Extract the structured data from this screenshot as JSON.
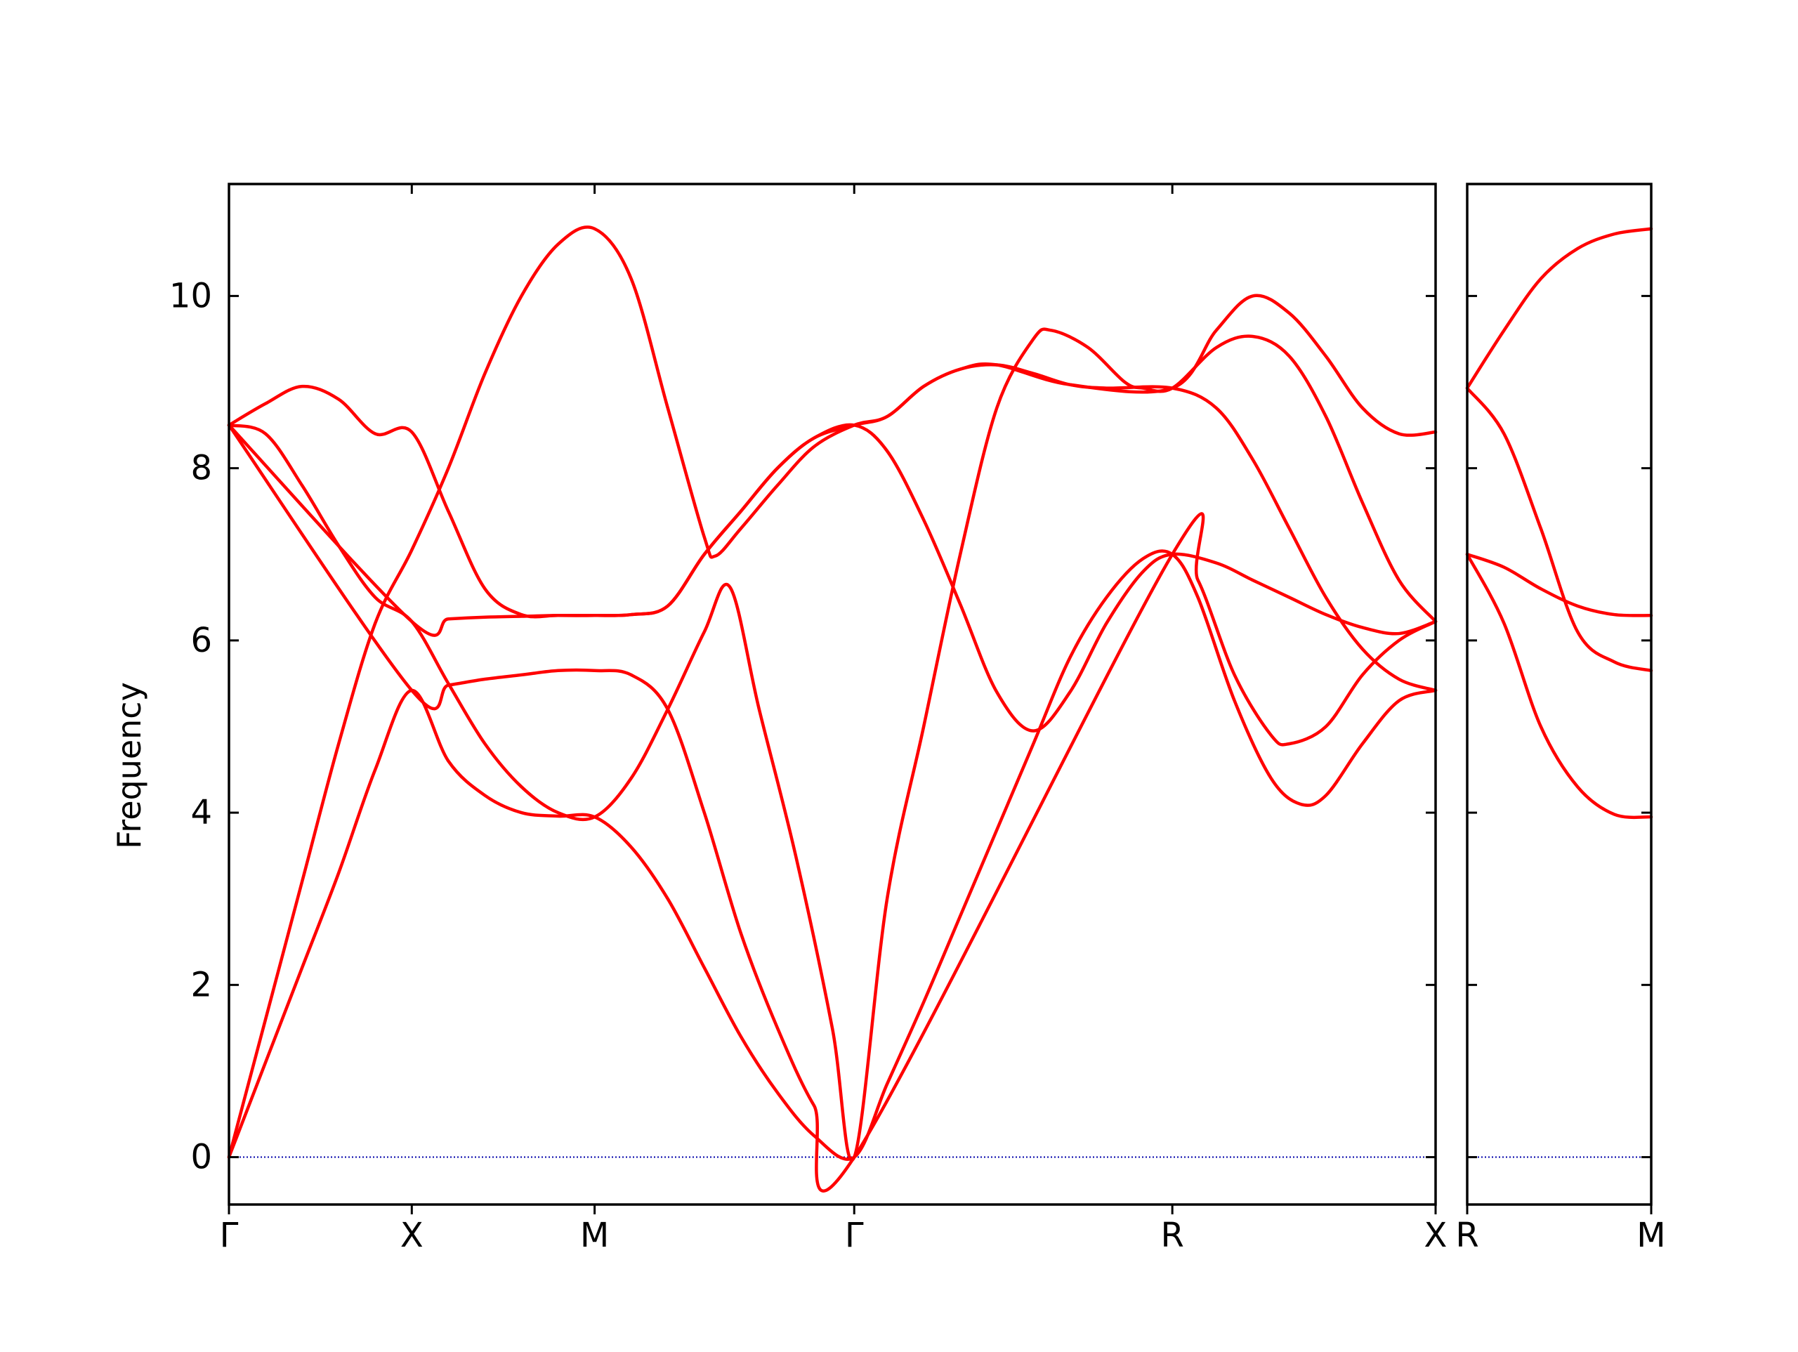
{
  "chart_data": {
    "type": "line",
    "title": "",
    "ylabel": "Frequency",
    "xlabel": "",
    "ylim": [
      -0.55,
      11.3
    ],
    "yticks": [
      0,
      2,
      4,
      6,
      8,
      10
    ],
    "grid": false,
    "legend": "none",
    "colors": {
      "bands": "#ff0000",
      "zero_line": "#0000aa",
      "axes": "#000000"
    },
    "panels": [
      {
        "path": "Γ–X–M–Γ–R–X",
        "xlim": [
          0,
          3.3
        ],
        "high_symmetry_points": [
          {
            "label": "Γ",
            "x": 0.0
          },
          {
            "label": "X",
            "x": 0.5
          },
          {
            "label": "M",
            "x": 1.0
          },
          {
            "label": "Γ",
            "x": 1.71
          },
          {
            "label": "R",
            "x": 2.58
          },
          {
            "label": "X",
            "x": 3.3
          }
        ],
        "series": [
          {
            "values": [
              [
                0,
                0
              ],
              [
                0.1,
                1.1
              ],
              [
                0.2,
                2.2
              ],
              [
                0.3,
                3.3
              ],
              [
                0.4,
                4.5
              ],
              [
                0.5,
                5.42
              ],
              [
                0.6,
                4.6
              ],
              [
                0.7,
                4.2
              ],
              [
                0.8,
                4.0
              ],
              [
                0.9,
                3.96
              ],
              [
                1.0,
                3.95
              ],
              [
                1.1,
                3.6
              ],
              [
                1.2,
                3.0
              ],
              [
                1.3,
                2.2
              ],
              [
                1.4,
                1.4
              ],
              [
                1.5,
                0.75
              ],
              [
                1.6,
                0.25
              ],
              [
                1.71,
                0
              ],
              [
                1.8,
                0.85
              ],
              [
                1.9,
                1.8
              ],
              [
                2.0,
                2.8
              ],
              [
                2.1,
                3.8
              ],
              [
                2.2,
                4.8
              ],
              [
                2.3,
                5.8
              ],
              [
                2.4,
                6.5
              ],
              [
                2.5,
                6.95
              ],
              [
                2.58,
                7.0
              ],
              [
                2.65,
                6.5
              ],
              [
                2.75,
                5.3
              ],
              [
                2.85,
                4.4
              ],
              [
                2.93,
                4.1
              ],
              [
                3.0,
                4.2
              ],
              [
                3.1,
                4.8
              ],
              [
                3.2,
                5.3
              ],
              [
                3.3,
                5.42
              ]
            ]
          },
          {
            "values": [
              [
                0,
                0
              ],
              [
                0.1,
                1.6
              ],
              [
                0.2,
                3.2
              ],
              [
                0.3,
                4.8
              ],
              [
                0.4,
                6.2
              ],
              [
                0.5,
                7.05
              ],
              [
                0.6,
                8.0
              ],
              [
                0.7,
                9.1
              ],
              [
                0.8,
                10.0
              ],
              [
                0.9,
                10.6
              ],
              [
                1.0,
                10.78
              ],
              [
                1.1,
                10.2
              ],
              [
                1.2,
                8.7
              ],
              [
                1.3,
                7.2
              ],
              [
                1.33,
                6.98
              ],
              [
                1.4,
                7.3
              ],
              [
                1.5,
                7.8
              ],
              [
                1.6,
                8.25
              ],
              [
                1.71,
                8.5
              ],
              [
                1.8,
                8.6
              ],
              [
                1.9,
                8.95
              ],
              [
                2.0,
                9.15
              ],
              [
                2.1,
                9.2
              ],
              [
                2.2,
                9.1
              ],
              [
                2.3,
                8.97
              ],
              [
                2.4,
                8.93
              ],
              [
                2.58,
                8.93
              ],
              [
                2.7,
                8.7
              ],
              [
                2.8,
                8.1
              ],
              [
                2.9,
                7.3
              ],
              [
                3.0,
                6.5
              ],
              [
                3.1,
                5.9
              ],
              [
                3.2,
                5.55
              ],
              [
                3.3,
                5.42
              ]
            ]
          },
          {
            "values": [
              [
                0,
                8.5
              ],
              [
                0.1,
                8.4
              ],
              [
                0.2,
                7.8
              ],
              [
                0.3,
                7.1
              ],
              [
                0.4,
                6.5
              ],
              [
                0.5,
                6.22
              ],
              [
                0.6,
                5.5
              ],
              [
                0.7,
                4.8
              ],
              [
                0.8,
                4.3
              ],
              [
                0.9,
                4.0
              ],
              [
                1.0,
                3.95
              ],
              [
                1.1,
                4.4
              ],
              [
                1.2,
                5.2
              ],
              [
                1.3,
                6.1
              ],
              [
                1.37,
                6.62
              ],
              [
                1.45,
                5.2
              ],
              [
                1.55,
                3.5
              ],
              [
                1.65,
                1.5
              ],
              [
                1.71,
                0
              ],
              [
                1.8,
                3.0
              ],
              [
                1.9,
                5.0
              ],
              [
                2.0,
                7.0
              ],
              [
                2.1,
                8.7
              ],
              [
                2.2,
                9.5
              ],
              [
                2.25,
                9.6
              ],
              [
                2.35,
                9.4
              ],
              [
                2.45,
                9.0
              ],
              [
                2.5,
                8.93
              ],
              [
                2.58,
                8.93
              ],
              [
                2.7,
                9.4
              ],
              [
                2.8,
                9.53
              ],
              [
                2.9,
                9.3
              ],
              [
                3.0,
                8.6
              ],
              [
                3.1,
                7.6
              ],
              [
                3.2,
                6.7
              ],
              [
                3.3,
                6.22
              ]
            ]
          },
          {
            "values": [
              [
                0,
                8.5
              ],
              [
                0.1,
                8.75
              ],
              [
                0.2,
                8.95
              ],
              [
                0.3,
                8.8
              ],
              [
                0.4,
                8.4
              ],
              [
                0.5,
                8.42
              ],
              [
                0.6,
                7.5
              ],
              [
                0.7,
                6.6
              ],
              [
                0.8,
                6.3
              ],
              [
                0.9,
                6.29
              ],
              [
                1.0,
                6.29
              ],
              [
                1.1,
                6.3
              ],
              [
                1.2,
                6.4
              ],
              [
                1.3,
                7.0
              ],
              [
                1.4,
                7.5
              ],
              [
                1.5,
                8.0
              ],
              [
                1.6,
                8.35
              ],
              [
                1.71,
                8.5
              ],
              [
                1.8,
                8.2
              ],
              [
                1.9,
                7.4
              ],
              [
                2.0,
                6.42
              ],
              [
                2.1,
                5.4
              ],
              [
                2.2,
                4.95
              ],
              [
                2.3,
                5.4
              ],
              [
                2.4,
                6.2
              ],
              [
                2.5,
                6.8
              ],
              [
                2.58,
                7.0
              ],
              [
                2.7,
                6.9
              ],
              [
                2.8,
                6.7
              ],
              [
                2.9,
                6.5
              ],
              [
                3.0,
                6.3
              ],
              [
                3.1,
                6.15
              ],
              [
                3.2,
                6.08
              ],
              [
                3.3,
                6.22
              ]
            ]
          },
          {
            "values": [
              [
                0,
                8.5
              ],
              [
                0.5,
                6.22
              ],
              [
                0.6,
                6.25
              ],
              [
                0.7,
                6.27
              ],
              [
                0.8,
                6.28
              ],
              [
                0.9,
                6.29
              ],
              [
                1.0,
                6.29
              ],
              [
                1.1,
                6.3
              ],
              [
                1.2,
                6.4
              ],
              [
                1.3,
                7.0
              ],
              [
                1.4,
                7.5
              ],
              [
                1.5,
                8.0
              ],
              [
                1.6,
                8.35
              ],
              [
                1.71,
                8.5
              ],
              [
                1.8,
                8.6
              ],
              [
                1.9,
                8.95
              ],
              [
                2.0,
                9.15
              ],
              [
                2.1,
                9.2
              ],
              [
                2.3,
                8.97
              ],
              [
                2.58,
                8.93
              ],
              [
                2.7,
                9.6
              ],
              [
                2.8,
                10.0
              ],
              [
                2.9,
                9.8
              ],
              [
                3.0,
                9.3
              ],
              [
                3.1,
                8.7
              ],
              [
                3.2,
                8.4
              ],
              [
                3.3,
                8.42
              ]
            ]
          },
          {
            "values": [
              [
                0,
                8.5
              ],
              [
                0.5,
                5.42
              ],
              [
                0.6,
                5.48
              ],
              [
                0.7,
                5.55
              ],
              [
                0.8,
                5.6
              ],
              [
                0.9,
                5.65
              ],
              [
                1.0,
                5.65
              ],
              [
                1.1,
                5.6
              ],
              [
                1.2,
                5.2
              ],
              [
                1.3,
                4.0
              ],
              [
                1.4,
                2.6
              ],
              [
                1.5,
                1.5
              ],
              [
                1.6,
                0.6
              ],
              [
                1.71,
                0
              ],
              [
                2.58,
                7.0
              ],
              [
                2.65,
                6.7
              ],
              [
                2.75,
                5.6
              ],
              [
                2.85,
                4.9
              ],
              [
                2.9,
                4.8
              ],
              [
                3.0,
                5.0
              ],
              [
                3.1,
                5.6
              ],
              [
                3.2,
                6.0
              ],
              [
                3.3,
                6.22
              ]
            ]
          }
        ]
      },
      {
        "path": "R–M",
        "xlim": [
          0,
          0.5
        ],
        "high_symmetry_points": [
          {
            "label": "R",
            "x": 0.0
          },
          {
            "label": "M",
            "x": 0.5
          }
        ],
        "series": [
          {
            "values": [
              [
                0,
                8.93
              ],
              [
                0.1,
                9.6
              ],
              [
                0.2,
                10.2
              ],
              [
                0.3,
                10.55
              ],
              [
                0.4,
                10.72
              ],
              [
                0.5,
                10.78
              ]
            ]
          },
          {
            "values": [
              [
                0,
                8.93
              ],
              [
                0.1,
                8.4
              ],
              [
                0.2,
                7.3
              ],
              [
                0.3,
                6.1
              ],
              [
                0.4,
                5.75
              ],
              [
                0.5,
                5.65
              ]
            ]
          },
          {
            "values": [
              [
                0,
                7.0
              ],
              [
                0.1,
                6.85
              ],
              [
                0.2,
                6.6
              ],
              [
                0.3,
                6.4
              ],
              [
                0.4,
                6.3
              ],
              [
                0.5,
                6.29
              ]
            ]
          },
          {
            "values": [
              [
                0,
                7.0
              ],
              [
                0.1,
                6.2
              ],
              [
                0.2,
                5.0
              ],
              [
                0.3,
                4.3
              ],
              [
                0.4,
                3.98
              ],
              [
                0.5,
                3.95
              ]
            ]
          }
        ]
      }
    ]
  }
}
